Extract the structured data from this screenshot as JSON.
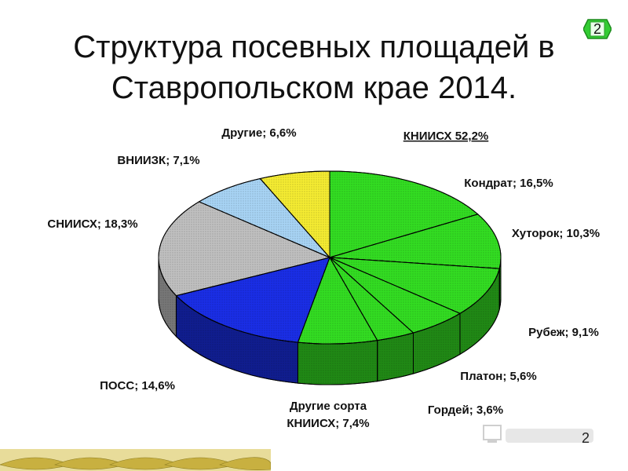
{
  "slide": {
    "title": "Структура посевных площадей в\nСтавропольском крае 2014.",
    "badge": "2",
    "page_number": "2"
  },
  "chart_data": {
    "type": "pie",
    "subtype": "3d",
    "group_label": "КНИИСХ 52,2%",
    "slices": [
      {
        "label": "Кондрат; 16,5%",
        "value": 16.5,
        "color": "#33dd22",
        "group": "КНИИСХ"
      },
      {
        "label": "Хуторок; 10,3%",
        "value": 10.3,
        "color": "#33dd22",
        "group": "КНИИСХ"
      },
      {
        "label": "Рубеж; 9,1%",
        "value": 9.1,
        "color": "#33dd22",
        "group": "КНИИСХ"
      },
      {
        "label": "Платон; 5,6%",
        "value": 5.6,
        "color": "#33dd22",
        "group": "КНИИСХ"
      },
      {
        "label": "Гордей; 3,6%",
        "value": 3.6,
        "color": "#33dd22",
        "group": "КНИИСХ"
      },
      {
        "label": "Другие сорта\nКНИИСХ; 7,4%",
        "value": 7.4,
        "color": "#33dd22",
        "group": "КНИИСХ"
      },
      {
        "label": "ПОСС; 14,6%",
        "value": 14.6,
        "color": "#1a2ee6",
        "group": ""
      },
      {
        "label": "СНИИСХ; 18,3%",
        "value": 18.3,
        "color": "#c0c0c0",
        "group": ""
      },
      {
        "label": "ВНИИЗК; 7,1%",
        "value": 7.1,
        "color": "#a8d4f5",
        "group": ""
      },
      {
        "label": "Другие; 6,6%",
        "value": 6.6,
        "color": "#f5ec32",
        "group": ""
      }
    ],
    "start_angle": "top, clockwise",
    "legend": "none"
  },
  "colors": {
    "badge_green": "#33cc33",
    "strip_gold": "#c8b040"
  },
  "icons": {
    "watermark": "myshared-logo-icon",
    "footer": "wheat-strip-decoration"
  }
}
